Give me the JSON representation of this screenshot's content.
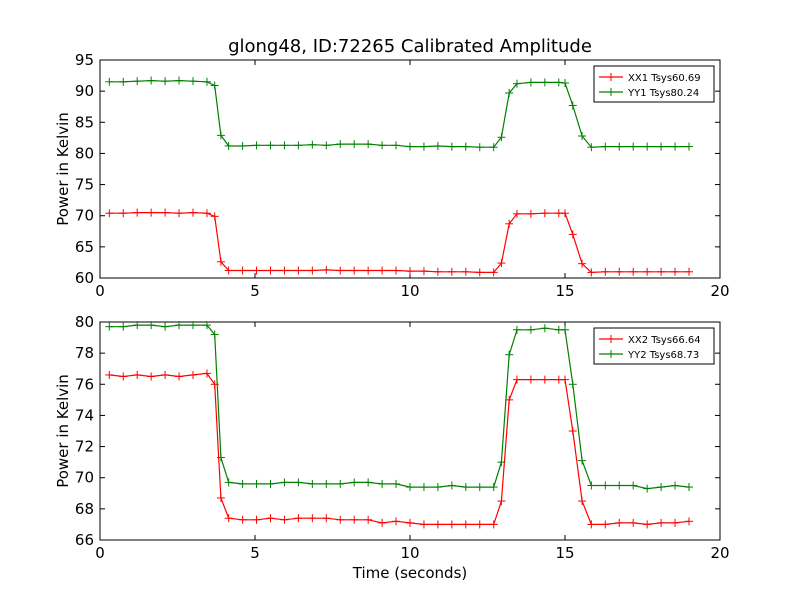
{
  "figure": {
    "title": "glong48, ID:72265 Calibrated Amplitude",
    "xlabel": "Time (seconds)"
  },
  "chart_data": [
    {
      "type": "line",
      "title": "glong48, ID:72265 Calibrated Amplitude",
      "xlabel": "",
      "ylabel": "Power in Kelvin",
      "xlim": [
        0,
        20
      ],
      "ylim": [
        60,
        95
      ],
      "xticks": [
        0,
        5,
        10,
        15,
        20
      ],
      "yticks": [
        60,
        65,
        70,
        75,
        80,
        85,
        90,
        95
      ],
      "grid": false,
      "legend_position": "top-right",
      "x": [
        0.3,
        0.75,
        1.2,
        1.65,
        2.1,
        2.55,
        3.0,
        3.45,
        3.7,
        3.9,
        4.15,
        4.6,
        5.05,
        5.5,
        5.95,
        6.4,
        6.85,
        7.3,
        7.75,
        8.2,
        8.65,
        9.1,
        9.55,
        10.0,
        10.45,
        10.9,
        11.35,
        11.8,
        12.25,
        12.7,
        12.95,
        13.2,
        13.45,
        13.9,
        14.35,
        14.8,
        15.0,
        15.25,
        15.55,
        15.85,
        16.3,
        16.75,
        17.2,
        17.65,
        18.1,
        18.55,
        19.0
      ],
      "series": [
        {
          "name": "XX1 Tsys60.69",
          "color": "#ff0000",
          "values": [
            70.4,
            70.4,
            70.5,
            70.5,
            70.5,
            70.4,
            70.5,
            70.4,
            69.9,
            62.6,
            61.2,
            61.2,
            61.2,
            61.2,
            61.2,
            61.2,
            61.2,
            61.3,
            61.2,
            61.2,
            61.2,
            61.2,
            61.2,
            61.1,
            61.1,
            61.0,
            61.0,
            61.0,
            60.9,
            60.9,
            62.4,
            68.7,
            70.3,
            70.3,
            70.4,
            70.4,
            70.4,
            67.0,
            62.3,
            60.9,
            61.0,
            61.0,
            61.0,
            61.0,
            61.0,
            61.0,
            61.0
          ]
        },
        {
          "name": "YY1 Tsys80.24",
          "color": "#008000",
          "values": [
            91.5,
            91.5,
            91.6,
            91.7,
            91.6,
            91.7,
            91.6,
            91.5,
            90.9,
            82.9,
            81.2,
            81.2,
            81.3,
            81.3,
            81.3,
            81.3,
            81.4,
            81.3,
            81.5,
            81.5,
            81.5,
            81.3,
            81.3,
            81.1,
            81.1,
            81.2,
            81.1,
            81.1,
            81.0,
            81.0,
            82.6,
            89.7,
            91.2,
            91.4,
            91.4,
            91.4,
            91.3,
            87.7,
            82.8,
            81.0,
            81.1,
            81.1,
            81.1,
            81.1,
            81.1,
            81.1,
            81.1
          ]
        }
      ]
    },
    {
      "type": "line",
      "title": "",
      "xlabel": "Time (seconds)",
      "ylabel": "Power in Kelvin",
      "xlim": [
        0,
        20
      ],
      "ylim": [
        66,
        80
      ],
      "xticks": [
        0,
        5,
        10,
        15,
        20
      ],
      "yticks": [
        66,
        68,
        70,
        72,
        74,
        76,
        78,
        80
      ],
      "grid": false,
      "legend_position": "top-right",
      "x": [
        0.3,
        0.75,
        1.2,
        1.65,
        2.1,
        2.55,
        3.0,
        3.45,
        3.7,
        3.9,
        4.15,
        4.6,
        5.05,
        5.5,
        5.95,
        6.4,
        6.85,
        7.3,
        7.75,
        8.2,
        8.65,
        9.1,
        9.55,
        10.0,
        10.45,
        10.9,
        11.35,
        11.8,
        12.25,
        12.7,
        12.95,
        13.2,
        13.45,
        13.9,
        14.35,
        14.8,
        15.0,
        15.25,
        15.55,
        15.85,
        16.3,
        16.75,
        17.2,
        17.65,
        18.1,
        18.55,
        19.0
      ],
      "series": [
        {
          "name": "XX2 Tsys66.64",
          "color": "#ff0000",
          "values": [
            76.6,
            76.5,
            76.6,
            76.5,
            76.6,
            76.5,
            76.6,
            76.7,
            76.0,
            68.7,
            67.4,
            67.3,
            67.3,
            67.4,
            67.3,
            67.4,
            67.4,
            67.4,
            67.3,
            67.3,
            67.3,
            67.1,
            67.2,
            67.1,
            67.0,
            67.0,
            67.0,
            67.0,
            67.0,
            67.0,
            68.5,
            75.0,
            76.3,
            76.3,
            76.3,
            76.3,
            76.3,
            73.0,
            68.5,
            67.0,
            67.0,
            67.1,
            67.1,
            67.0,
            67.1,
            67.1,
            67.2
          ]
        },
        {
          "name": "YY2 Tsys68.73",
          "color": "#008000",
          "values": [
            79.7,
            79.7,
            79.8,
            79.8,
            79.7,
            79.8,
            79.8,
            79.8,
            79.2,
            71.3,
            69.7,
            69.6,
            69.6,
            69.6,
            69.7,
            69.7,
            69.6,
            69.6,
            69.6,
            69.7,
            69.7,
            69.6,
            69.6,
            69.4,
            69.4,
            69.4,
            69.5,
            69.4,
            69.4,
            69.4,
            71.0,
            77.9,
            79.5,
            79.5,
            79.6,
            79.5,
            79.5,
            76.0,
            71.1,
            69.5,
            69.5,
            69.5,
            69.5,
            69.3,
            69.4,
            69.5,
            69.4
          ]
        }
      ]
    }
  ]
}
